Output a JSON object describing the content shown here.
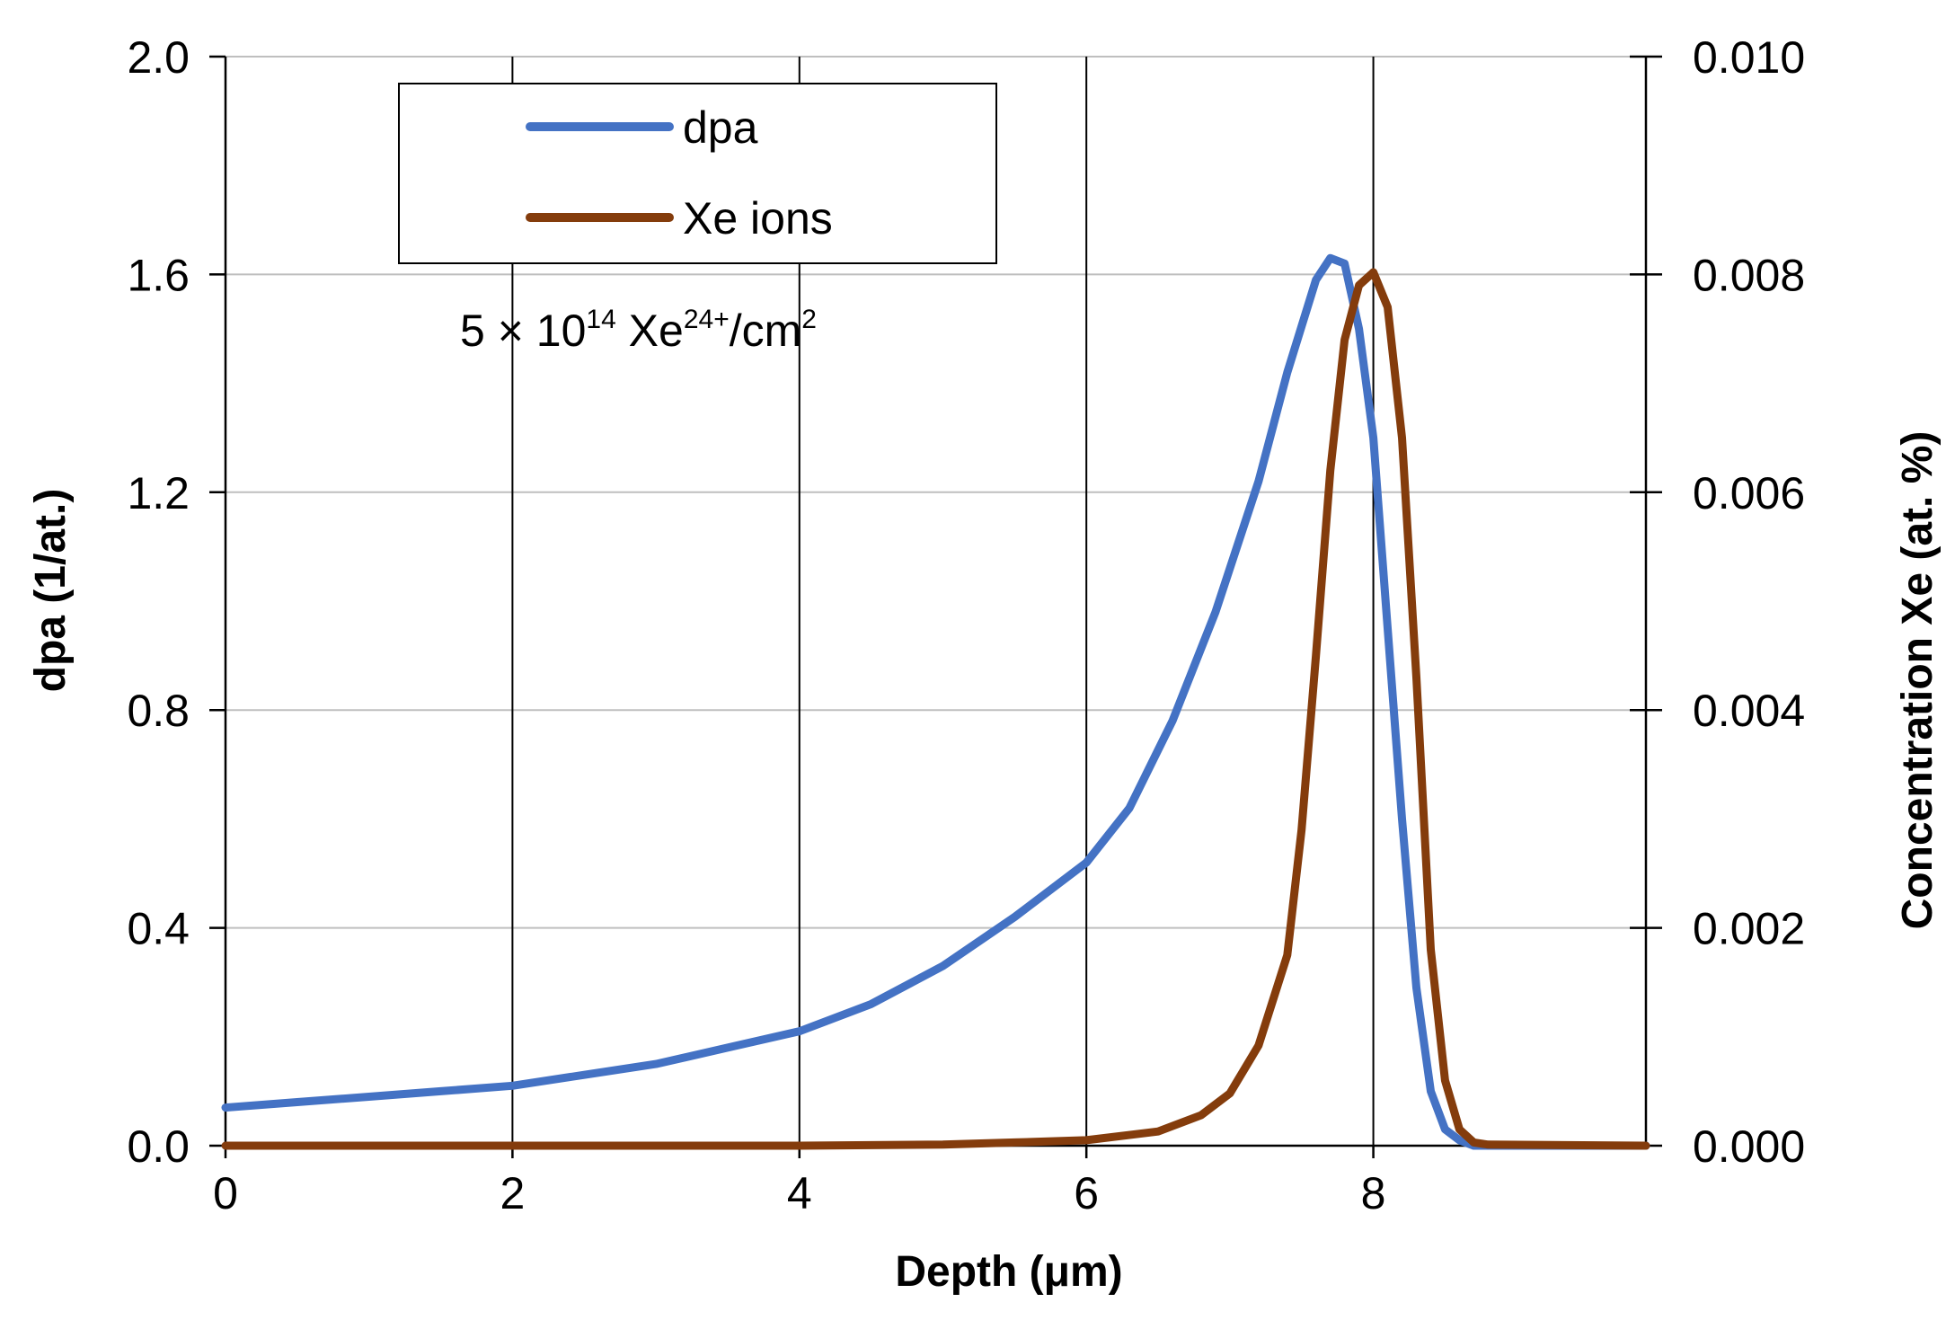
{
  "chart_data": {
    "type": "line",
    "title": "",
    "xlabel": "Depth (μm)",
    "ylabel": "dpa (1/at.)",
    "y2label": "Concentration Xe (at. %)",
    "xlim": [
      0,
      9.9
    ],
    "ylim": [
      0,
      2.0
    ],
    "y2lim": [
      0,
      0.01
    ],
    "x_ticks": [
      "0",
      "2",
      "4",
      "6",
      "8"
    ],
    "y_ticks": [
      "0.0",
      "0.4",
      "0.8",
      "1.2",
      "1.6",
      "2.0"
    ],
    "y2_ticks": [
      "0.000",
      "0.002",
      "0.004",
      "0.006",
      "0.008",
      "0.010"
    ],
    "grid": true,
    "legend_position": "top-left",
    "annotation": {
      "prefix": "5 × 10",
      "exp1": "14",
      "mid": " Xe",
      "exp2": "24+",
      "suffix": "/cm",
      "exp3": "2"
    },
    "series": [
      {
        "name": "dpa",
        "color": "#4472C4",
        "axis": "left",
        "x": [
          0,
          0.5,
          1.0,
          1.5,
          2.0,
          2.5,
          3.0,
          3.5,
          4.0,
          4.5,
          5.0,
          5.5,
          6.0,
          6.3,
          6.6,
          6.9,
          7.2,
          7.4,
          7.6,
          7.7,
          7.8,
          7.9,
          8.0,
          8.1,
          8.2,
          8.3,
          8.4,
          8.5,
          8.6,
          8.7,
          9.9
        ],
        "values": [
          0.07,
          0.08,
          0.09,
          0.1,
          0.11,
          0.13,
          0.15,
          0.18,
          0.21,
          0.26,
          0.33,
          0.42,
          0.52,
          0.62,
          0.78,
          0.98,
          1.22,
          1.42,
          1.59,
          1.63,
          1.62,
          1.5,
          1.3,
          0.95,
          0.6,
          0.29,
          0.1,
          0.03,
          0.01,
          0.0,
          0.0
        ]
      },
      {
        "name": "Xe ions",
        "color": "#843C0C",
        "axis": "right",
        "x": [
          0,
          2.0,
          4.0,
          5.0,
          5.5,
          6.0,
          6.5,
          6.8,
          7.0,
          7.2,
          7.4,
          7.5,
          7.6,
          7.7,
          7.8,
          7.9,
          8.0,
          8.1,
          8.2,
          8.3,
          8.4,
          8.5,
          8.6,
          8.7,
          8.8,
          9.9
        ],
        "values": [
          0,
          0,
          0,
          1e-05,
          3e-05,
          5e-05,
          0.00013,
          0.00028,
          0.00048,
          0.00092,
          0.00175,
          0.0029,
          0.0045,
          0.0062,
          0.0074,
          0.0079,
          0.00802,
          0.0077,
          0.0065,
          0.0043,
          0.0018,
          0.0006,
          0.00015,
          3e-05,
          1e-05,
          0
        ]
      }
    ]
  }
}
